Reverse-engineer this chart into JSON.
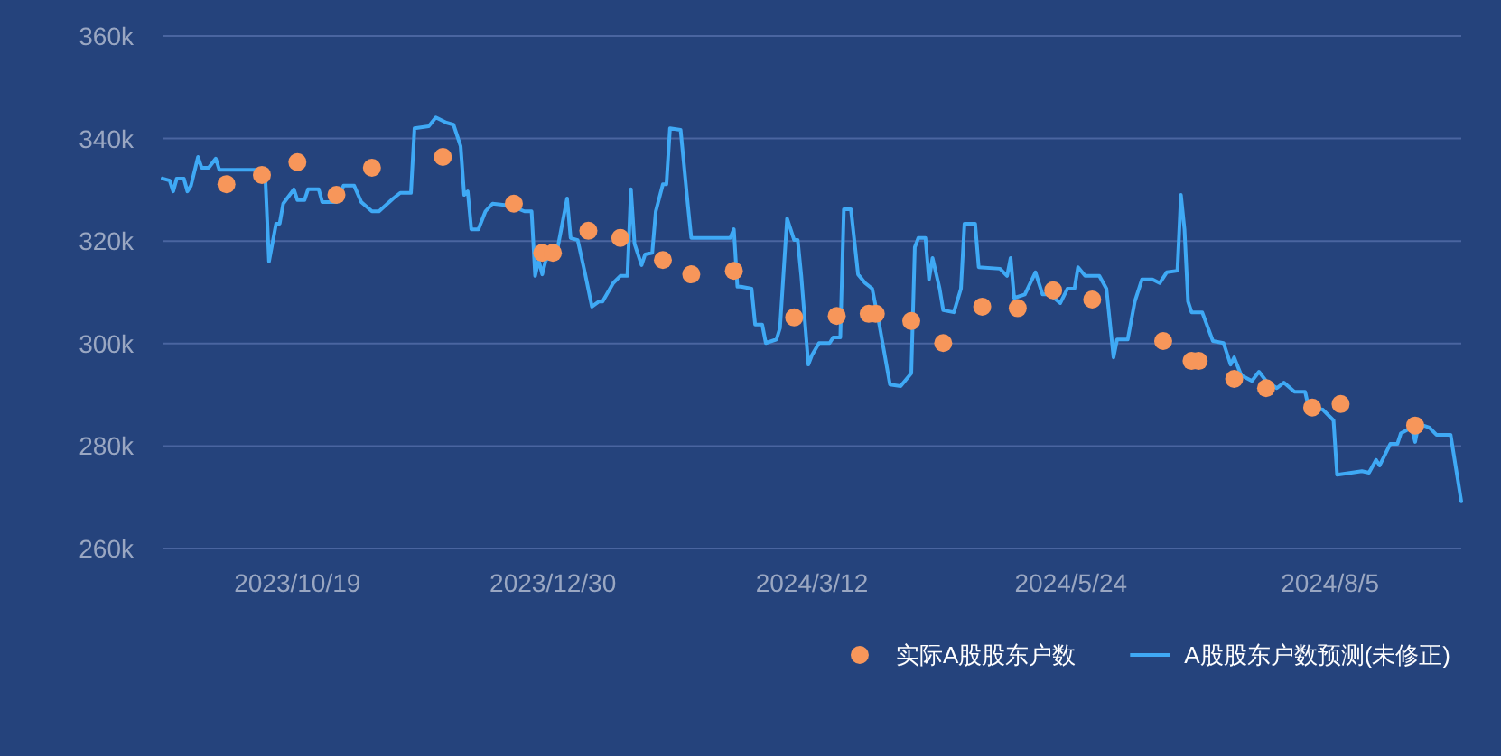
{
  "chart_data": {
    "type": "line",
    "xlim": [
      "2023-09-11",
      "2024-09-11"
    ],
    "xticks": [
      {
        "value": "2023-10-19",
        "label": "2023/10/19"
      },
      {
        "value": "2023-12-30",
        "label": "2023/12/30"
      },
      {
        "value": "2024-03-12",
        "label": "2024/3/12"
      },
      {
        "value": "2024-05-24",
        "label": "2024/5/24"
      },
      {
        "value": "2024-08-05",
        "label": "2024/8/5"
      }
    ],
    "ylim": [
      260,
      360
    ],
    "yticks": [
      {
        "value": 260,
        "label": "260k"
      },
      {
        "value": 280,
        "label": "280k"
      },
      {
        "value": 300,
        "label": "300k"
      },
      {
        "value": 320,
        "label": "320k"
      },
      {
        "value": 340,
        "label": "340k"
      },
      {
        "value": 360,
        "label": "360k"
      }
    ],
    "grid": "y",
    "legend": "bottom right",
    "series": [
      {
        "name": "实际A股股东户数",
        "type": "scatter",
        "marker": "circle",
        "color": "#f7965a",
        "x": [
          "2023-09-29",
          "2023-10-09",
          "2023-10-19",
          "2023-10-30",
          "2023-11-09",
          "2023-11-29",
          "2023-12-19",
          "2023-12-27",
          "2023-12-30",
          "2024-01-09",
          "2024-01-18",
          "2024-01-30",
          "2024-02-07",
          "2024-02-19",
          "2024-03-07",
          "2024-03-19",
          "2024-03-28",
          "2024-03-30",
          "2024-04-09",
          "2024-04-18",
          "2024-04-29",
          "2024-05-09",
          "2024-05-19",
          "2024-05-30",
          "2024-06-19",
          "2024-06-27",
          "2024-06-29",
          "2024-07-09",
          "2024-07-18",
          "2024-07-31",
          "2024-08-08",
          "2024-08-29"
        ],
        "values": [
          331.1,
          332.9,
          335.4,
          329.0,
          334.3,
          336.4,
          327.3,
          317.7,
          317.7,
          322.0,
          320.6,
          316.3,
          313.5,
          314.2,
          305.1,
          305.4,
          305.8,
          305.8,
          304.4,
          300.1,
          307.2,
          306.9,
          310.4,
          308.6,
          300.5,
          296.6,
          296.6,
          293.1,
          291.3,
          287.5,
          288.2,
          284.0
        ]
      },
      {
        "name": "A股股东户数预测(未修正)",
        "color": "#3fa9f5",
        "x": [
          "2023-09-11",
          "2023-09-13",
          "2023-09-14",
          "2023-09-15",
          "2023-09-17",
          "2023-09-18",
          "2023-09-19",
          "2023-09-21",
          "2023-09-22",
          "2023-09-24",
          "2023-09-26",
          "2023-09-27",
          "2023-10-08",
          "2023-10-10",
          "2023-10-11",
          "2023-10-13",
          "2023-10-14",
          "2023-10-15",
          "2023-10-18",
          "2023-10-19",
          "2023-10-21",
          "2023-10-22",
          "2023-10-25",
          "2023-10-26",
          "2023-10-30",
          "2023-11-01",
          "2023-11-04",
          "2023-11-06",
          "2023-11-09",
          "2023-11-11",
          "2023-11-15",
          "2023-11-17",
          "2023-11-20",
          "2023-11-21",
          "2023-11-25",
          "2023-11-27",
          "2023-11-30",
          "2023-12-02",
          "2023-12-04",
          "2023-12-05",
          "2023-12-06",
          "2023-12-07",
          "2023-12-09",
          "2023-12-11",
          "2023-12-13",
          "2023-12-18",
          "2023-12-22",
          "2023-12-24",
          "2023-12-25",
          "2023-12-26",
          "2023-12-27",
          "2023-12-28",
          "2023-12-31",
          "2024-01-03",
          "2024-01-04",
          "2024-01-06",
          "2024-01-08",
          "2024-01-10",
          "2024-01-12",
          "2024-01-13",
          "2024-01-16",
          "2024-01-18",
          "2024-01-20",
          "2024-01-21",
          "2024-01-22",
          "2024-01-24",
          "2024-01-25",
          "2024-01-27",
          "2024-01-28",
          "2024-01-30",
          "2024-01-31",
          "2024-02-01",
          "2024-02-04",
          "2024-02-06",
          "2024-02-07",
          "2024-02-18",
          "2024-02-19",
          "2024-02-20",
          "2024-02-21",
          "2024-02-24",
          "2024-02-25",
          "2024-02-27",
          "2024-02-28",
          "2024-03-02",
          "2024-03-03",
          "2024-03-05",
          "2024-03-07",
          "2024-03-08",
          "2024-03-09",
          "2024-03-11",
          "2024-03-12",
          "2024-03-14",
          "2024-03-17",
          "2024-03-18",
          "2024-03-20",
          "2024-03-21",
          "2024-03-23",
          "2024-03-25",
          "2024-03-27",
          "2024-03-29",
          "2024-03-31",
          "2024-04-03",
          "2024-04-06",
          "2024-04-09",
          "2024-04-10",
          "2024-04-11",
          "2024-04-13",
          "2024-04-14",
          "2024-04-15",
          "2024-04-17",
          "2024-04-18",
          "2024-04-21",
          "2024-04-23",
          "2024-04-24",
          "2024-04-27",
          "2024-04-28",
          "2024-05-04",
          "2024-05-06",
          "2024-05-07",
          "2024-05-08",
          "2024-05-11",
          "2024-05-14",
          "2024-05-16",
          "2024-05-18",
          "2024-05-21",
          "2024-05-23",
          "2024-05-25",
          "2024-05-26",
          "2024-05-28",
          "2024-06-01",
          "2024-06-03",
          "2024-06-05",
          "2024-06-06",
          "2024-06-09",
          "2024-06-11",
          "2024-06-13",
          "2024-06-16",
          "2024-06-18",
          "2024-06-20",
          "2024-06-23",
          "2024-06-24",
          "2024-06-25",
          "2024-06-26",
          "2024-06-27",
          "2024-06-30",
          "2024-07-03",
          "2024-07-06",
          "2024-07-08",
          "2024-07-09",
          "2024-07-11",
          "2024-07-14",
          "2024-07-16",
          "2024-07-18",
          "2024-07-21",
          "2024-07-23",
          "2024-07-26",
          "2024-07-29",
          "2024-07-30",
          "2024-08-03",
          "2024-08-06",
          "2024-08-07",
          "2024-08-11",
          "2024-08-14",
          "2024-08-16",
          "2024-08-18",
          "2024-08-19",
          "2024-08-22",
          "2024-08-24",
          "2024-08-25",
          "2024-08-28",
          "2024-08-29",
          "2024-08-30",
          "2024-09-02",
          "2024-09-04",
          "2024-09-08",
          "2024-09-11"
        ],
        "values": [
          332.2,
          331.8,
          329.7,
          332.2,
          332.2,
          329.7,
          330.8,
          336.4,
          334.3,
          334.3,
          336.1,
          333.9,
          333.9,
          331.8,
          316.0,
          323.4,
          323.4,
          327.3,
          330.1,
          328.0,
          328.0,
          330.1,
          330.1,
          327.6,
          327.6,
          330.8,
          330.8,
          327.6,
          325.8,
          325.8,
          328.3,
          329.4,
          329.4,
          342.0,
          342.4,
          344.1,
          343.1,
          342.7,
          338.5,
          329.0,
          329.7,
          322.3,
          322.3,
          325.8,
          327.3,
          326.9,
          325.8,
          325.8,
          313.2,
          316.3,
          313.5,
          316.3,
          317.4,
          328.3,
          320.6,
          320.2,
          313.9,
          307.2,
          308.2,
          308.2,
          311.8,
          313.2,
          313.2,
          330.1,
          319.5,
          315.3,
          317.4,
          317.7,
          325.8,
          331.1,
          331.1,
          342.0,
          341.7,
          327.3,
          320.6,
          320.6,
          322.3,
          311.1,
          311.1,
          310.7,
          303.7,
          303.7,
          300.1,
          300.8,
          303.0,
          324.4,
          320.2,
          320.2,
          313.2,
          295.9,
          297.7,
          300.1,
          300.1,
          301.2,
          301.2,
          326.2,
          326.2,
          313.5,
          311.8,
          310.7,
          303.7,
          292.0,
          291.7,
          294.2,
          318.8,
          320.6,
          320.6,
          312.5,
          316.7,
          310.7,
          306.5,
          306.1,
          310.7,
          323.4,
          323.4,
          314.9,
          314.6,
          313.2,
          316.7,
          308.9,
          309.6,
          313.9,
          309.6,
          309.6,
          307.9,
          310.7,
          310.7,
          314.9,
          313.2,
          313.2,
          310.7,
          297.3,
          300.8,
          300.8,
          308.2,
          312.5,
          312.5,
          311.8,
          313.9,
          314.2,
          329.0,
          322.3,
          308.2,
          306.1,
          306.1,
          300.5,
          300.1,
          295.9,
          297.3,
          293.8,
          292.7,
          294.5,
          292.7,
          291.3,
          292.4,
          290.6,
          290.6,
          287.5,
          287.1,
          285.0,
          274.4,
          274.8,
          275.1,
          274.8,
          277.3,
          276.2,
          280.4,
          280.4,
          282.5,
          283.6,
          280.8,
          284.3,
          283.6,
          282.2,
          282.2,
          269.2
        ]
      }
    ]
  }
}
